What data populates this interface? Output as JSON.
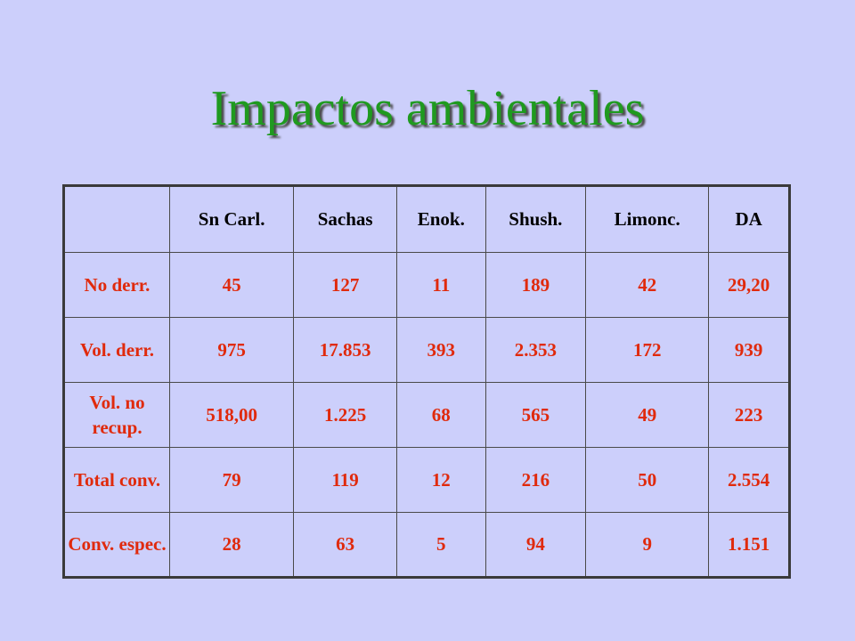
{
  "title": "Impactos ambientales",
  "table": {
    "headers": [
      "",
      "Sn Carl.",
      "Sachas",
      "Enok.",
      "Shush.",
      "Limonc.",
      "DA"
    ],
    "rows": [
      {
        "label": "No derr.",
        "cells": [
          "45",
          "127",
          "11",
          "189",
          "42",
          "29,20"
        ]
      },
      {
        "label": "Vol. derr.",
        "cells": [
          "975",
          "17.853",
          "393",
          "2.353",
          "172",
          "939"
        ]
      },
      {
        "label": "Vol. no recup.",
        "cells": [
          "518,00",
          "1.225",
          "68",
          "565",
          "49",
          "223"
        ]
      },
      {
        "label": "Total conv.",
        "cells": [
          "79",
          "119",
          "12",
          "216",
          "50",
          "2.554"
        ]
      },
      {
        "label": "Conv. espec.",
        "cells": [
          "28",
          "63",
          "5",
          "94",
          "9",
          "1.151"
        ]
      }
    ]
  },
  "colors": {
    "background": "#cccffb",
    "title": "#1f9a1f",
    "header_text": "#000000",
    "data_text": "#e02a0c"
  }
}
